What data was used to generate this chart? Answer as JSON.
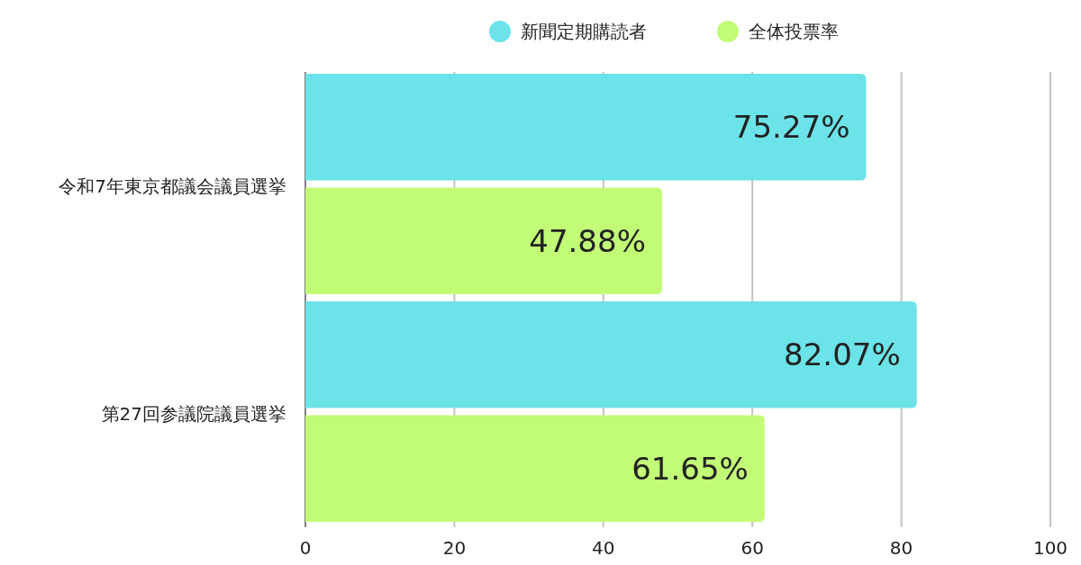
{
  "chart_data": {
    "type": "bar",
    "orientation": "horizontal",
    "categories": [
      "令和7年東京都議会議員選挙",
      "第27回参議院議員選挙"
    ],
    "series": [
      {
        "name": "新聞定期購読者",
        "color": "#6ce3e8",
        "values": [
          75.27,
          82.07
        ],
        "value_labels": [
          "75.27%",
          "82.07%"
        ]
      },
      {
        "name": "全体投票率",
        "color": "#c2fc77",
        "values": [
          47.88,
          61.65
        ],
        "value_labels": [
          "47.88%",
          "61.65%"
        ]
      }
    ],
    "xlim": [
      0,
      100
    ],
    "xticks": [
      0,
      20,
      40,
      60,
      80,
      100
    ],
    "grid": "x",
    "legend": "top"
  }
}
